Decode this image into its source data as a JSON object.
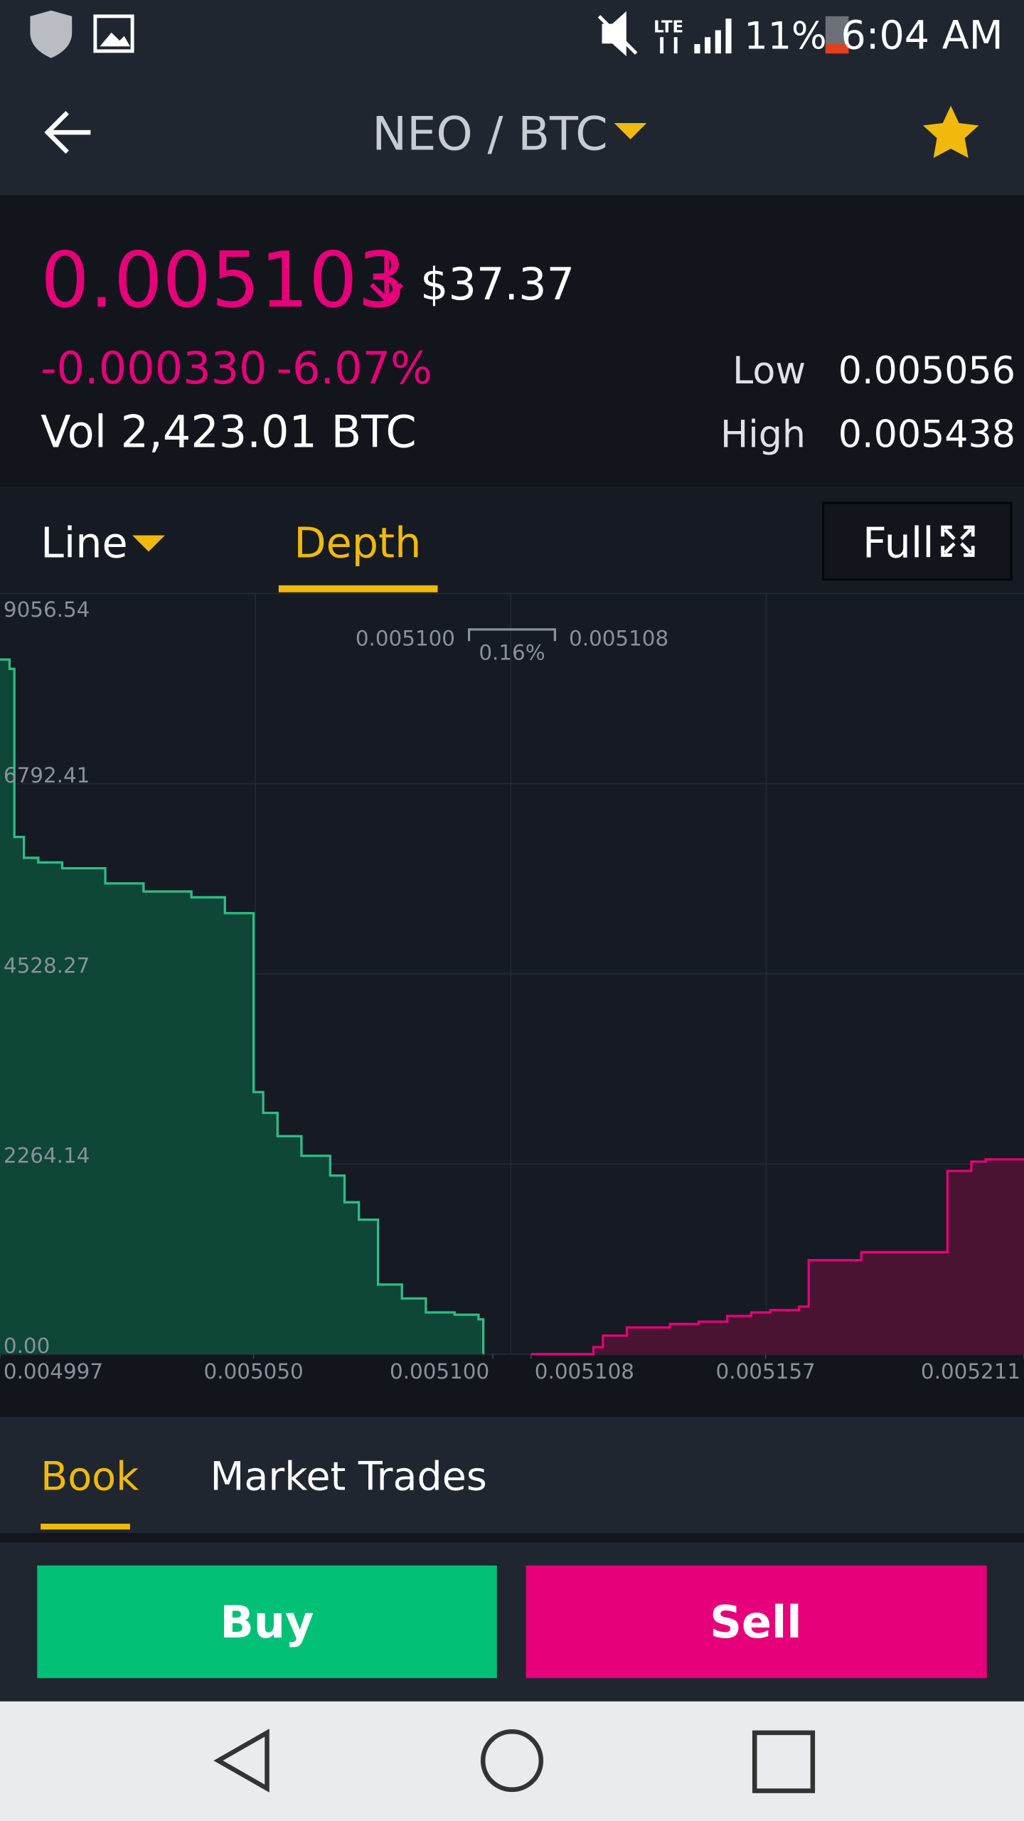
{
  "status_bar": {
    "battery": "11%",
    "time": "6:04 AM"
  },
  "header": {
    "pair": "NEO / BTC"
  },
  "ticker": {
    "price": "0.005103",
    "price_usd": "$37.37",
    "change": "-0.000330",
    "change_percent": "-6.07%",
    "volume": "Vol 2,423.01 BTC",
    "low_label": "Low",
    "low": "0.005056",
    "high_label": "High",
    "high": "0.005438"
  },
  "chart_tabs": {
    "line": "Line",
    "depth": "Depth",
    "full": "Full"
  },
  "chart_data": {
    "type": "depth",
    "annotations": {
      "bid": "0.005100",
      "spread": "0.16%",
      "ask": "0.005108"
    },
    "xlim": [
      0.004997,
      0.005211
    ],
    "xticks": [
      0.004997,
      {
        "value": 0.00505,
        "label": "0.005050"
      },
      {
        "value": 0.0051,
        "label": "0.005100"
      },
      0.005108,
      0.005157,
      0.005211
    ],
    "ylim": [
      0,
      9056.54
    ],
    "yticks": [
      {
        "value": 0,
        "label": "0.00"
      },
      2264.14,
      4528.27,
      6792.41,
      9056.54
    ],
    "grid": true,
    "series": [
      {
        "color": "#2ebd85",
        "fill": "#0e4637",
        "x": [
          0.004997,
          0.004999,
          0.005,
          0.005002,
          0.005005,
          0.00501,
          0.005019,
          0.005027,
          0.005037,
          0.005044,
          0.00505,
          0.005052,
          0.005055,
          0.00506,
          0.005066,
          0.005069,
          0.005072,
          0.005076,
          0.005081,
          0.005086,
          0.005092,
          0.005097,
          0.005098
        ],
        "values": [
          8270,
          8159,
          6157,
          5909,
          5854,
          5785,
          5605,
          5508,
          5439,
          5250,
          3120,
          2872,
          2595,
          2361,
          2126,
          1808,
          1601,
          828,
          663,
          497,
          469,
          414,
          0
        ]
      },
      {
        "color": "#e6007a",
        "fill": "#4a1331",
        "x": [
          0.005108,
          0.005121,
          0.005123,
          0.005128,
          0.005137,
          0.005143,
          0.005149,
          0.005154,
          0.005158,
          0.005164,
          0.005166,
          0.005177,
          0.005195,
          0.0052,
          0.005203,
          0.005211
        ],
        "values": [
          0,
          83,
          221,
          318,
          359,
          387,
          455,
          497,
          524,
          566,
          1118,
          1215,
          2181,
          2292,
          2319,
          2319
        ]
      }
    ]
  },
  "bottom_tabs": {
    "book": "Book",
    "market_trades": "Market Trades"
  },
  "actions": {
    "buy": "Buy",
    "sell": "Sell"
  }
}
